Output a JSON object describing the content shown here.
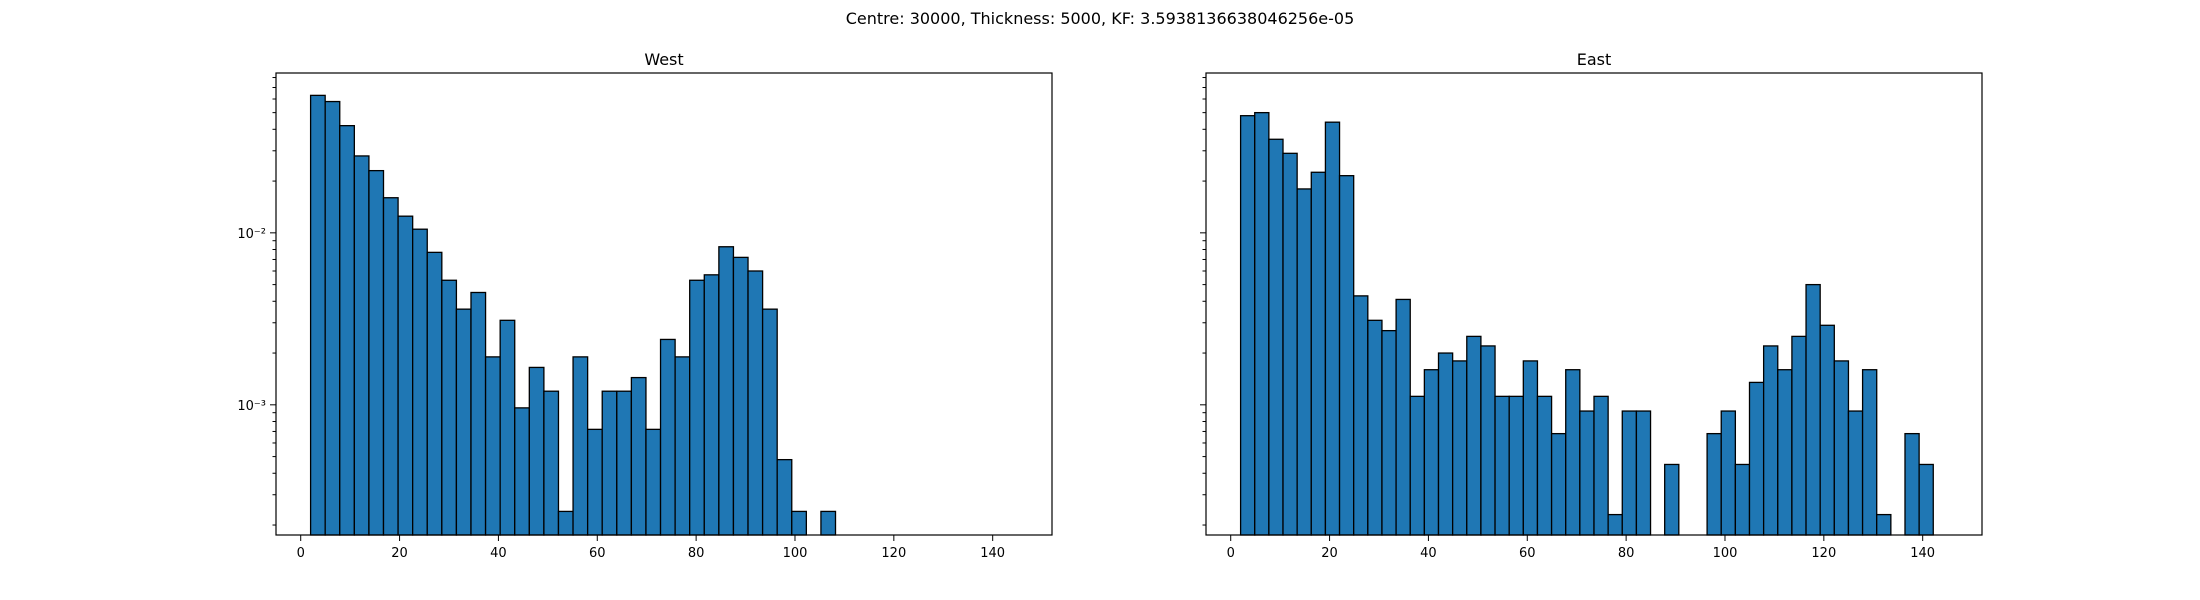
{
  "suptitle": "Centre: 30000, Thickness: 5000, KF: 3.5938136638046256e-05",
  "chart_data": [
    {
      "type": "bar",
      "title": "West",
      "scale": "log",
      "xlim": [
        -5,
        152
      ],
      "ylim": [
        0.000175,
        0.085
      ],
      "bin_width": 2.95,
      "x_ticks": [
        0,
        20,
        40,
        60,
        80,
        100,
        120,
        140
      ],
      "x_tick_labels": [
        "0",
        "20",
        "40",
        "60",
        "80",
        "100",
        "120",
        "140"
      ],
      "y_major_ticks": [
        0.01,
        0.001
      ],
      "y_tick_labels": [
        "10⁻²",
        "10⁻³"
      ],
      "bin_starts": [
        2,
        4.95,
        7.9,
        10.85,
        13.8,
        16.75,
        19.7,
        22.65,
        25.6,
        28.55,
        31.5,
        34.45,
        37.4,
        40.35,
        43.3,
        46.25,
        49.2,
        52.15,
        55.1,
        58.05,
        61,
        63.95,
        66.9,
        69.85,
        72.8,
        75.75,
        78.7,
        81.65,
        84.6,
        87.55,
        90.5,
        93.45,
        96.4,
        99.35,
        102.3,
        105.25
      ],
      "values": [
        0.063,
        0.058,
        0.042,
        0.028,
        0.023,
        0.016,
        0.0125,
        0.0105,
        0.0077,
        0.0053,
        0.0036,
        0.0045,
        0.0019,
        0.0031,
        0.00096,
        0.00165,
        0.0012,
        0.00024,
        0.0019,
        0.00072,
        0.0012,
        0.0012,
        0.00144,
        0.00072,
        0.0024,
        0.0019,
        0.0053,
        0.0057,
        0.0083,
        0.0072,
        0.006,
        0.0036,
        0.00048,
        0.00024,
        0,
        0.00024
      ]
    },
    {
      "type": "bar",
      "title": "East",
      "scale": "log",
      "xlim": [
        -5,
        152
      ],
      "ylim": [
        0.000175,
        0.085
      ],
      "bin_width": 2.86,
      "x_ticks": [
        0,
        20,
        40,
        60,
        80,
        100,
        120,
        140
      ],
      "x_tick_labels": [
        "0",
        "20",
        "40",
        "60",
        "80",
        "100",
        "120",
        "140"
      ],
      "y_major_ticks": [
        0.01,
        0.001
      ],
      "y_tick_labels": [],
      "bin_starts": [
        2,
        4.86,
        7.72,
        10.58,
        13.44,
        16.3,
        19.16,
        22.02,
        24.88,
        27.74,
        30.6,
        33.46,
        36.32,
        39.18,
        42.04,
        44.9,
        47.76,
        50.62,
        53.48,
        56.34,
        59.2,
        62.06,
        64.92,
        67.78,
        70.64,
        73.5,
        76.36,
        79.22,
        82.08,
        84.94,
        87.8,
        90.66,
        93.52,
        96.38,
        99.24,
        102.1,
        104.96,
        107.82,
        110.68,
        113.54,
        116.4,
        119.26,
        122.12,
        124.98,
        127.84,
        130.7,
        133.56,
        136.42,
        139.28,
        142.14
      ],
      "values": [
        0.048,
        0.05,
        0.035,
        0.029,
        0.018,
        0.0225,
        0.044,
        0.0215,
        0.0043,
        0.0031,
        0.0027,
        0.0041,
        0.00112,
        0.0016,
        0.002,
        0.0018,
        0.0025,
        0.0022,
        0.00112,
        0.00112,
        0.0018,
        0.00112,
        0.00068,
        0.0016,
        0.00092,
        0.00112,
        0.00023,
        0.00092,
        0.00092,
        0,
        0.00045,
        0,
        0,
        0.00068,
        0.00092,
        0.00045,
        0.00135,
        0.0022,
        0.0016,
        0.0025,
        0.005,
        0.0029,
        0.0018,
        0.00092,
        0.0016,
        0.00023,
        0,
        0.00068,
        0.00045,
        0
      ]
    }
  ]
}
